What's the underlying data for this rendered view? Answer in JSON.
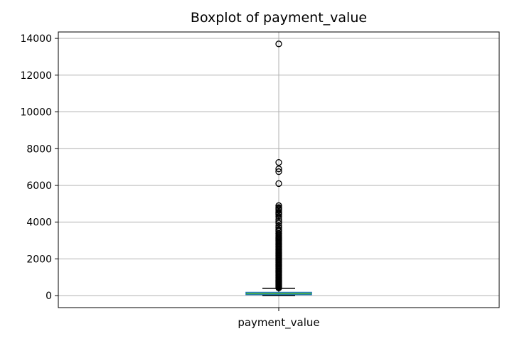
{
  "chart_data": {
    "type": "box",
    "title": "Boxplot of payment_value",
    "categories": [
      "payment_value"
    ],
    "xlabel": "",
    "ylabel": "",
    "ylim": [
      -650,
      14350
    ],
    "yticks": [
      0,
      2000,
      4000,
      6000,
      8000,
      10000,
      12000,
      14000
    ],
    "grid": true,
    "series": [
      {
        "category": "payment_value",
        "whisker_low": 0,
        "q1": 57,
        "median": 108,
        "q3": 180,
        "whisker_high": 400,
        "outliers": [
          420,
          460,
          500,
          540,
          580,
          620,
          660,
          700,
          740,
          780,
          820,
          860,
          900,
          950,
          1000,
          1050,
          1100,
          1150,
          1200,
          1250,
          1300,
          1350,
          1400,
          1450,
          1500,
          1550,
          1600,
          1650,
          1700,
          1750,
          1800,
          1850,
          1900,
          1950,
          2000,
          2050,
          2100,
          2150,
          2200,
          2250,
          2300,
          2350,
          2400,
          2450,
          2500,
          2550,
          2600,
          2650,
          2700,
          2750,
          2800,
          2850,
          2900,
          2950,
          3000,
          3050,
          3100,
          3150,
          3200,
          3260,
          3350,
          3400,
          3500,
          3550,
          3600,
          3700,
          3800,
          3950,
          4050,
          4150,
          4300,
          4400,
          4450,
          4500,
          4550,
          4650,
          4700,
          4750,
          4800,
          4900,
          6100,
          6750,
          6900,
          7250,
          13700
        ]
      }
    ],
    "colors": {
      "box": "#1f77b4",
      "median": "#2ca02c",
      "whisker": "#000000",
      "outlier": "#000000",
      "grid": "#b0b0b0",
      "axis": "#000000"
    }
  }
}
